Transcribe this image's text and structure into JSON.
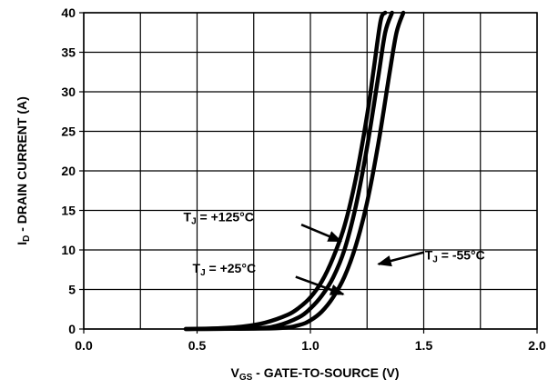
{
  "chart_data": {
    "type": "line",
    "xlabel_main": "V",
    "xlabel_sub": "GS",
    "xlabel_rest": " - GATE-TO-SOURCE  (V)",
    "ylabel_main": "I",
    "ylabel_sub": "D",
    "ylabel_rest": " - DRAIN CURRENT (A)",
    "xlim": [
      0.0,
      2.0
    ],
    "ylim": [
      0,
      40
    ],
    "x_ticks": [
      "0.0",
      "0.5",
      "1.0",
      "1.5",
      "2.0"
    ],
    "y_ticks": [
      "0",
      "5",
      "10",
      "15",
      "20",
      "25",
      "30",
      "35",
      "40"
    ],
    "grid": true,
    "series": [
      {
        "name": "T_J = +125°C",
        "x": [
          0.45,
          0.6,
          0.7,
          0.8,
          0.9,
          0.95,
          1.0,
          1.05,
          1.1,
          1.15,
          1.2,
          1.25,
          1.28,
          1.31,
          1.33
        ],
        "y": [
          0,
          0.1,
          0.3,
          0.8,
          1.8,
          2.7,
          4.0,
          6.0,
          9.0,
          13.0,
          19.0,
          27.0,
          33.0,
          39.0,
          40.0
        ]
      },
      {
        "name": "T_J = +25°C",
        "x": [
          0.45,
          0.75,
          0.85,
          0.95,
          1.0,
          1.05,
          1.1,
          1.15,
          1.2,
          1.25,
          1.3,
          1.33,
          1.36
        ],
        "y": [
          0,
          0.1,
          0.4,
          1.5,
          2.6,
          4.2,
          6.5,
          10.0,
          15.5,
          23.0,
          32.0,
          37.5,
          40.0
        ]
      },
      {
        "name": "T_J = -55°C",
        "x": [
          0.5,
          0.85,
          0.95,
          1.0,
          1.05,
          1.1,
          1.15,
          1.2,
          1.25,
          1.3,
          1.35,
          1.38,
          1.41
        ],
        "y": [
          0,
          0.1,
          0.5,
          1.1,
          2.2,
          4.0,
          6.6,
          10.5,
          16.0,
          23.5,
          32.5,
          37.5,
          40.0
        ]
      }
    ],
    "annotations": [
      {
        "label_main": "T",
        "label_sub": "J",
        "label_rest": " = +125°C",
        "text_at": [
          0.44,
          13.6
        ],
        "arrow_from": [
          0.96,
          13.2
        ],
        "arrow_to": [
          1.135,
          11.1
        ]
      },
      {
        "label_main": "T",
        "label_sub": "J",
        "label_rest": " = +25°C",
        "text_at": [
          0.48,
          7.1
        ],
        "arrow_from": [
          0.935,
          6.6
        ],
        "arrow_to": [
          1.145,
          4.4
        ]
      },
      {
        "label_main": "T",
        "label_sub": "J",
        "label_rest": " = -55°C",
        "text_at": [
          1.505,
          8.8
        ],
        "arrow_from": [
          1.5,
          9.7
        ],
        "arrow_to": [
          1.3,
          8.2
        ]
      }
    ]
  }
}
